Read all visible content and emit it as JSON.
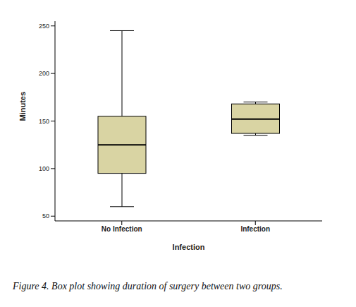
{
  "chart_data": {
    "type": "box",
    "caption": "Figure 4. Box plot showing duration of surgery between two groups.",
    "x_label": "Infection",
    "y_label": "Minutes",
    "categories": [
      "No Infection",
      "Infection"
    ],
    "stats": [
      {
        "min": 60,
        "q1": 95,
        "median": 125,
        "q3": 155,
        "max": 245
      },
      {
        "min": 135,
        "q1": 137,
        "median": 152,
        "q3": 168,
        "max": 170
      }
    ],
    "color": "#d9d4a3",
    "ylim": [
      45,
      255
    ],
    "yticks": [
      50,
      100,
      150,
      200,
      250
    ]
  }
}
